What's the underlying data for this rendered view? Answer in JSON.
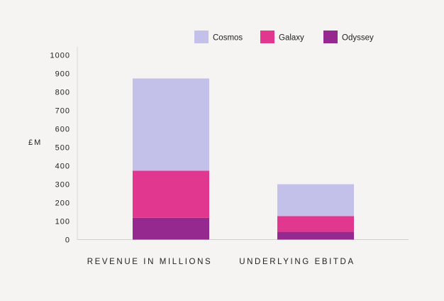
{
  "chart_data": {
    "type": "bar",
    "stacked": true,
    "title": "",
    "xlabel": "",
    "ylabel": "£M",
    "ylim": [
      0,
      1000
    ],
    "yticks": [
      0,
      100,
      200,
      300,
      400,
      500,
      600,
      700,
      800,
      900,
      1000
    ],
    "categories": [
      "REVENUE IN MILLIONS",
      "UNDERLYING EBITDA"
    ],
    "series": [
      {
        "name": "Odyssey",
        "color": "#962990",
        "values": [
          118,
          42
        ]
      },
      {
        "name": "Galaxy",
        "color": "#e2378f",
        "values": [
          255,
          85
        ]
      },
      {
        "name": "Cosmos",
        "color": "#c3c1e9",
        "values": [
          500,
          173
        ]
      }
    ],
    "legend_order": [
      "Cosmos",
      "Galaxy",
      "Odyssey"
    ],
    "legend_position": "top-right",
    "grid": false
  }
}
